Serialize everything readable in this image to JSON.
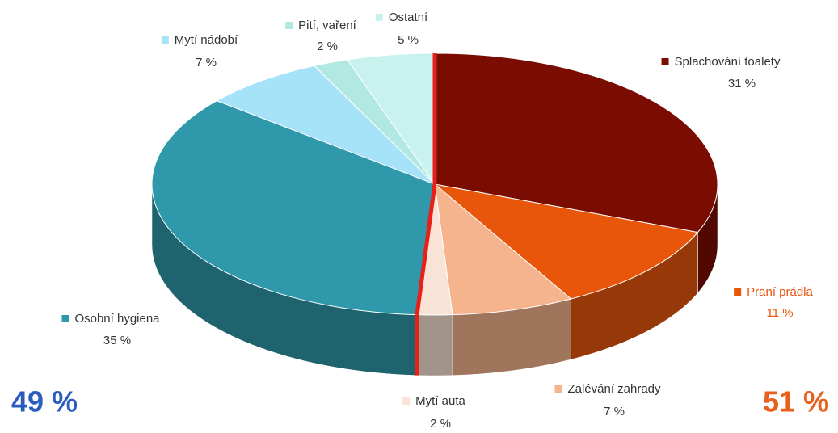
{
  "chart_data": {
    "type": "pie",
    "categories": [
      "Splachování toalety",
      "Praní prádla",
      "Zalévání zahrady",
      "Mytí auta",
      "Osobní hygiena",
      "Mytí nádobí",
      "Pití, vaření",
      "Ostatní"
    ],
    "values": [
      31,
      11,
      7,
      2,
      35,
      7,
      2,
      5
    ],
    "value_labels": [
      "31 %",
      "11 %",
      "7 %",
      "2 %",
      "35 %",
      "7 %",
      "2 %",
      "5 %"
    ],
    "colors": [
      "#7b0c02",
      "#e8560c",
      "#f5b48e",
      "#f9e3d6",
      "#2f98aa",
      "#a6e2f8",
      "#b2e8e2",
      "#c9f1ee"
    ],
    "annotations": [
      "49 %",
      "51 %"
    ]
  }
}
